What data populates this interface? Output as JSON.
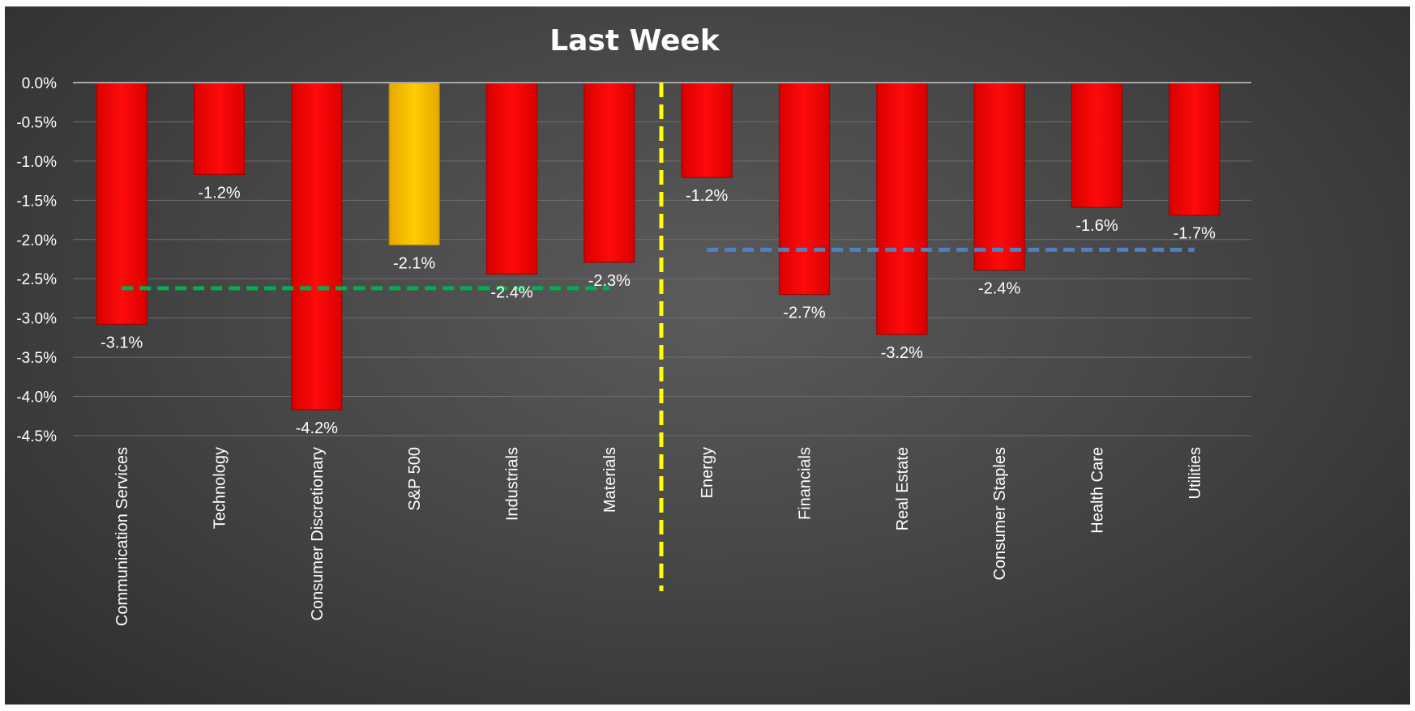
{
  "chart_data": {
    "type": "bar",
    "title": "Last Week",
    "xlabel": "",
    "ylabel": "",
    "ylim": [
      -4.5,
      0
    ],
    "ytick_values": [
      0,
      -0.5,
      -1.0,
      -1.5,
      -2.0,
      -2.5,
      -3.0,
      -3.5,
      -4.0,
      -4.5
    ],
    "ytick_labels": [
      "0.0%",
      "-0.5%",
      "-1.0%",
      "-1.5%",
      "-2.0%",
      "-2.5%",
      "-3.0%",
      "-3.5%",
      "-4.0%",
      "-4.5%"
    ],
    "categories": [
      "Communication Services",
      "Technology",
      "Consumer Discretionary",
      "S&P 500",
      "Industrials",
      "Materials",
      "Energy",
      "Financials",
      "Real Estate",
      "Consumer Staples",
      "Health Care",
      "Utilities"
    ],
    "values": [
      -3.08,
      -1.17,
      -4.17,
      -2.07,
      -2.44,
      -2.29,
      -1.21,
      -2.7,
      -3.21,
      -2.39,
      -1.59,
      -1.69
    ],
    "data_labels": [
      "-3.1%",
      "-1.2%",
      "-4.2%",
      "-2.1%",
      "-2.4%",
      "-2.3%",
      "-1.2%",
      "-2.7%",
      "-3.2%",
      "-2.4%",
      "-1.6%",
      "-1.7%"
    ],
    "bar_colors": [
      "#ff0000",
      "#ff0000",
      "#ff0000",
      "#ffc000",
      "#ff0000",
      "#ff0000",
      "#ff0000",
      "#ff0000",
      "#ff0000",
      "#ff0000",
      "#ff0000",
      "#ff0000"
    ],
    "grid": true,
    "legend": "none",
    "reference_lines": [
      {
        "from": "Communication Services",
        "to": "Materials",
        "value": -2.62,
        "color": "#00b050",
        "style": "dashed"
      },
      {
        "from": "Energy",
        "to": "Utilities",
        "value": -2.13,
        "color": "#4f81bd",
        "style": "dashed"
      }
    ],
    "divider": {
      "between": [
        "Materials",
        "Energy"
      ],
      "color": "#ffff00",
      "style": "dashed"
    }
  }
}
